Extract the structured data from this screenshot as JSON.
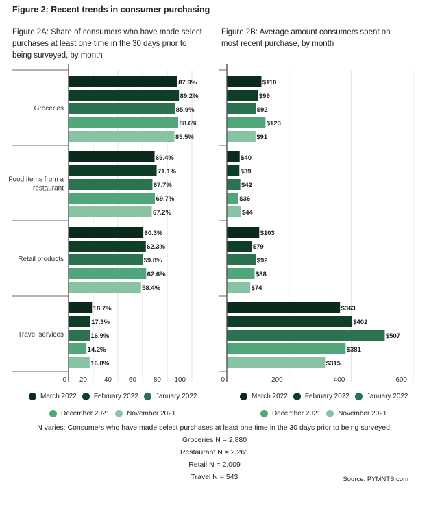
{
  "title": "Figure 2: Recent trends in consumer purchasing",
  "colors": {
    "March 2022": "#0c2a1b",
    "February 2022": "#0e3f26",
    "January 2022": "#2b7350",
    "December 2021": "#52a67b",
    "November 2021": "#88c4a3"
  },
  "chart_data": [
    {
      "type": "bar",
      "orientation": "horizontal",
      "title": "Figure 2A: Share of consumers who have made select purchases at least one time in the 30 days prior to being surveyed, by month",
      "categories": [
        "Groceries",
        "Food items from a restaurant",
        "Retail products",
        "Travel services"
      ],
      "xlim": [
        0,
        100
      ],
      "ticks": [
        "0",
        "20",
        "40",
        "60",
        "80",
        "100"
      ],
      "grid": true,
      "legend": "bottom",
      "series": [
        {
          "name": "March 2022",
          "values": [
            87.9,
            69.4,
            60.3,
            18.7
          ],
          "labels": [
            "87.9%",
            "69.4%",
            "60.3%",
            "18.7%"
          ]
        },
        {
          "name": "February 2022",
          "values": [
            89.2,
            71.1,
            62.3,
            17.3
          ],
          "labels": [
            "89.2%",
            "71.1%",
            "62.3%",
            "17.3%"
          ]
        },
        {
          "name": "January 2022",
          "values": [
            85.9,
            67.7,
            59.8,
            16.9
          ],
          "labels": [
            "85.9%",
            "67.7%",
            "59.8%",
            "16.9%"
          ]
        },
        {
          "name": "December 2021",
          "values": [
            88.6,
            69.7,
            62.6,
            14.2
          ],
          "labels": [
            "88.6%",
            "69.7%",
            "62.6%",
            "14.2%"
          ]
        },
        {
          "name": "November 2021",
          "values": [
            85.5,
            67.2,
            58.4,
            16.8
          ],
          "labels": [
            "85.5%",
            "67.2%",
            "58.4%",
            "16.8%"
          ]
        }
      ]
    },
    {
      "type": "bar",
      "orientation": "horizontal",
      "title": "Figure 2B: Average amount consumers spent on most recent purchase, by month",
      "categories": [
        "Groceries",
        "Food items from a restaurant",
        "Retail products",
        "Travel services"
      ],
      "xlim": [
        0,
        600
      ],
      "ticks": [
        "0",
        "200",
        "400",
        "600"
      ],
      "grid": true,
      "legend": "bottom",
      "series": [
        {
          "name": "March 2022",
          "values": [
            110,
            40,
            103,
            363
          ],
          "labels": [
            "$110",
            "$40",
            "$103",
            "$363"
          ]
        },
        {
          "name": "February 2022",
          "values": [
            99,
            39,
            79,
            402
          ],
          "labels": [
            "$99",
            "$39",
            "$79",
            "$402"
          ]
        },
        {
          "name": "January 2022",
          "values": [
            92,
            42,
            92,
            507
          ],
          "labels": [
            "$92",
            "$42",
            "$92",
            "$507"
          ]
        },
        {
          "name": "December 2021",
          "values": [
            123,
            36,
            88,
            381
          ],
          "labels": [
            "$123",
            "$36",
            "$88",
            "$381"
          ]
        },
        {
          "name": "November 2021",
          "values": [
            91,
            44,
            74,
            315
          ],
          "labels": [
            "$91",
            "$44",
            "$74",
            "$315"
          ]
        }
      ]
    }
  ],
  "notes": [
    "N varies: Consumers who have made select purchases at least one time in the 30 days prior to being surveyed.",
    "Groceries N = 2,880",
    "Restaurant N = 2,261",
    "Retail N = 2,009",
    "Travel N = 543"
  ],
  "source": "Source: PYMNTS.com"
}
